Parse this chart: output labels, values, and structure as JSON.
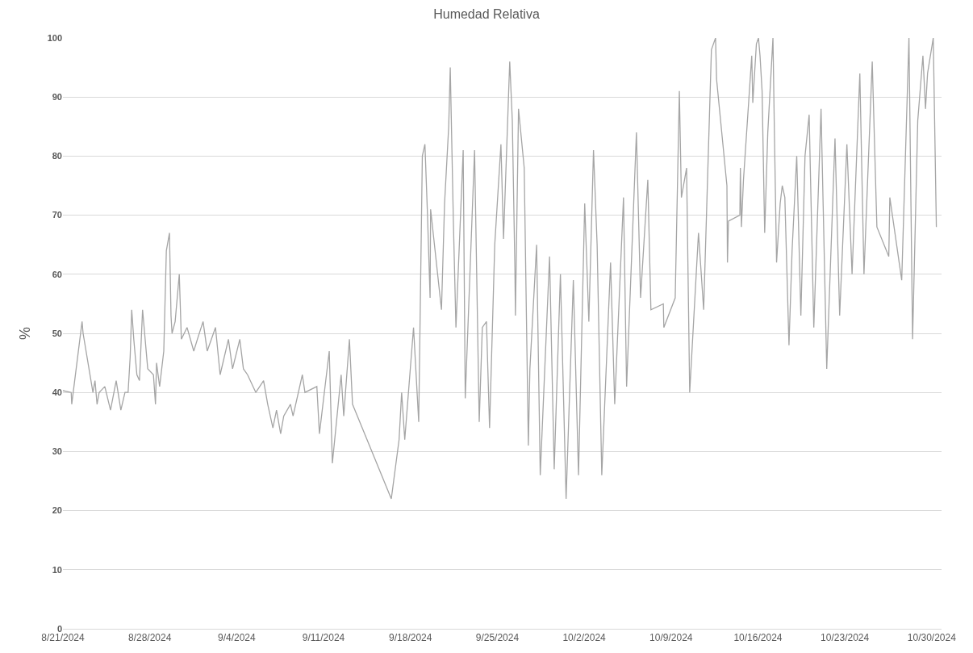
{
  "chart_data": {
    "type": "line",
    "title": "Humedad Relativa",
    "ylabel": "%",
    "x": [
      "2024-08-21T00:00",
      "2024-08-21T16:00",
      "2024-08-21T17:00",
      "2024-08-22T13:00",
      "2024-08-22T15:00",
      "2024-08-23T10:00",
      "2024-08-23T14:00",
      "2024-08-23T18:00",
      "2024-08-23T22:00",
      "2024-08-24T09:00",
      "2024-08-24T20:00",
      "2024-08-25T07:00",
      "2024-08-25T16:00",
      "2024-08-26T00:00",
      "2024-08-26T06:00",
      "2024-08-26T10:00",
      "2024-08-26T13:00",
      "2024-08-26T17:00",
      "2024-08-26T23:00",
      "2024-08-27T04:00",
      "2024-08-27T10:00",
      "2024-08-27T15:00",
      "2024-08-27T20:00",
      "2024-08-28T07:00",
      "2024-08-28T11:00",
      "2024-08-28T13:00",
      "2024-08-28T19:00",
      "2024-08-29T03:00",
      "2024-08-29T08:00",
      "2024-08-29T14:00",
      "2024-08-29T17:00",
      "2024-08-29T19:00",
      "2024-08-30T01:00",
      "2024-08-30T09:00",
      "2024-08-30T13:00",
      "2024-08-31T00:00",
      "2024-08-31T13:00",
      "2024-08-31T20:00",
      "2024-09-01T07:00",
      "2024-09-01T15:00",
      "2024-09-02T07:00",
      "2024-09-02T16:00",
      "2024-09-03T08:00",
      "2024-09-03T16:00",
      "2024-09-04T06:00",
      "2024-09-04T13:00",
      "2024-09-04T21:00",
      "2024-09-05T13:00",
      "2024-09-06T04:00",
      "2024-09-06T12:00",
      "2024-09-06T22:00",
      "2024-09-07T05:00",
      "2024-09-07T13:00",
      "2024-09-07T19:00",
      "2024-09-08T08:00",
      "2024-09-08T13:00",
      "2024-09-09T07:00",
      "2024-09-09T12:00",
      "2024-09-10T11:00",
      "2024-09-10T16:00",
      "2024-09-11T11:00",
      "2024-09-11T17:00",
      "2024-09-12T10:00",
      "2024-09-12T15:00",
      "2024-09-13T02:00",
      "2024-09-13T08:00",
      "2024-09-16T11:00",
      "2024-09-16T14:00",
      "2024-09-17T02:00",
      "2024-09-17T07:00",
      "2024-09-17T13:00",
      "2024-09-18T06:00",
      "2024-09-18T16:00",
      "2024-09-18T23:00",
      "2024-09-19T04:00",
      "2024-09-19T09:00",
      "2024-09-19T14:00",
      "2024-09-19T15:00",
      "2024-09-20T12:00",
      "2024-09-20T18:00",
      "2024-09-21T02:00",
      "2024-09-21T05:00",
      "2024-09-21T11:00",
      "2024-09-21T16:00",
      "2024-09-22T06:00",
      "2024-09-22T10:00",
      "2024-09-23T04:00",
      "2024-09-23T13:00",
      "2024-09-23T19:00",
      "2024-09-24T03:00",
      "2024-09-24T09:00",
      "2024-09-24T19:00",
      "2024-09-25T07:00",
      "2024-09-25T12:00",
      "2024-09-26T00:00",
      "2024-09-26T05:00",
      "2024-09-26T10:00",
      "2024-09-26T11:00",
      "2024-09-26T17:00",
      "2024-09-27T04:00",
      "2024-09-27T12:00",
      "2024-09-27T15:00",
      "2024-09-28T04:00",
      "2024-09-28T11:00",
      "2024-09-29T05:00",
      "2024-09-29T14:00",
      "2024-09-30T02:00",
      "2024-09-30T13:00",
      "2024-10-01T03:00",
      "2024-10-01T13:00",
      "2024-10-02T01:00",
      "2024-10-02T09:00",
      "2024-10-02T18:00",
      "2024-10-03T01:00",
      "2024-10-03T10:00",
      "2024-10-04T03:00",
      "2024-10-04T11:00",
      "2024-10-05T04:00",
      "2024-10-05T10:00",
      "2024-10-06T05:00",
      "2024-10-06T13:00",
      "2024-10-07T03:00",
      "2024-10-07T09:00",
      "2024-10-08T09:00",
      "2024-10-08T10:00",
      "2024-10-09T08:00",
      "2024-10-09T16:00",
      "2024-10-09T20:00",
      "2024-10-10T06:00",
      "2024-10-10T12:00",
      "2024-10-11T05:00",
      "2024-10-11T15:00",
      "2024-10-12T06:00",
      "2024-10-12T14:00",
      "2024-10-12T16:00",
      "2024-10-13T12:00",
      "2024-10-13T13:00",
      "2024-10-13T15:00",
      "2024-10-14T13:00",
      "2024-10-14T14:00",
      "2024-10-14T16:00",
      "2024-10-14T20:00",
      "2024-10-15T12:00",
      "2024-10-15T14:00",
      "2024-10-15T21:00",
      "2024-10-16T01:00",
      "2024-10-16T04:00",
      "2024-10-16T08:00",
      "2024-10-16T13:00",
      "2024-10-16T19:00",
      "2024-10-17T05:00",
      "2024-10-17T08:00",
      "2024-10-17T12:00",
      "2024-10-17T19:00",
      "2024-10-17T23:00",
      "2024-10-18T04:00",
      "2024-10-18T12:00",
      "2024-10-18T18:00",
      "2024-10-19T03:00",
      "2024-10-19T11:00",
      "2024-10-19T19:00",
      "2024-10-20T03:00",
      "2024-10-20T12:00",
      "2024-10-21T02:00",
      "2024-10-21T13:00",
      "2024-10-22T05:00",
      "2024-10-22T14:00",
      "2024-10-23T04:00",
      "2024-10-23T14:00",
      "2024-10-24T05:00",
      "2024-10-24T13:00",
      "2024-10-25T05:00",
      "2024-10-25T14:00",
      "2024-10-26T13:00",
      "2024-10-26T15:00",
      "2024-10-27T14:00",
      "2024-10-28T04:00",
      "2024-10-28T11:00",
      "2024-10-28T21:00",
      "2024-10-29T07:00",
      "2024-10-29T12:00",
      "2024-10-29T16:00",
      "2024-10-30T03:00",
      "2024-10-30T09:00"
    ],
    "series": [
      {
        "color": "#a5a5a5",
        "values": [
          40.3,
          40,
          38,
          52,
          50,
          40,
          42,
          38,
          40,
          41,
          37,
          42,
          37,
          40,
          40,
          46,
          54,
          49,
          43,
          42,
          54,
          49,
          44,
          43,
          38,
          45,
          41,
          47,
          64,
          67,
          53,
          50,
          52,
          60,
          49,
          51,
          47,
          49,
          52,
          47,
          51,
          43,
          49,
          44,
          49,
          44,
          43,
          40,
          42,
          38,
          34,
          37,
          33,
          36,
          38,
          36,
          43,
          40,
          41,
          33,
          47,
          28,
          43,
          36,
          49,
          38,
          22,
          24,
          32,
          40,
          32,
          51,
          35,
          80,
          82,
          70,
          56,
          71,
          54,
          72,
          85,
          95,
          69,
          51,
          81,
          39,
          81,
          35,
          51,
          52,
          34,
          65,
          82,
          66,
          96,
          86,
          61,
          53,
          88,
          78,
          31,
          44,
          65,
          26,
          63,
          27,
          60,
          22,
          59,
          26,
          72,
          52,
          81,
          65,
          26,
          62,
          38,
          73,
          41,
          84,
          56,
          76,
          54,
          55,
          51,
          56,
          91,
          73,
          78,
          40,
          67,
          54,
          98,
          100,
          93,
          75,
          62,
          69,
          70,
          78,
          68,
          76,
          97,
          89,
          99,
          100,
          97,
          91,
          67,
          84,
          100,
          83,
          62,
          72,
          75,
          73,
          48,
          64,
          80,
          53,
          80,
          87,
          51,
          88,
          44,
          83,
          53,
          82,
          60,
          94,
          60,
          96,
          68,
          63,
          73,
          59,
          100,
          49,
          86,
          97,
          88,
          94,
          100,
          68
        ]
      }
    ],
    "xlim": [
      "2024-08-21T00:00",
      "2024-10-30T19:00"
    ],
    "xticks": [
      {
        "value": "2024-08-21",
        "label": "8/21/2024"
      },
      {
        "value": "2024-08-28",
        "label": "8/28/2024"
      },
      {
        "value": "2024-09-04",
        "label": "9/4/2024"
      },
      {
        "value": "2024-09-11",
        "label": "9/11/2024"
      },
      {
        "value": "2024-09-18",
        "label": "9/18/2024"
      },
      {
        "value": "2024-09-25",
        "label": "9/25/2024"
      },
      {
        "value": "2024-10-02",
        "label": "10/2/2024"
      },
      {
        "value": "2024-10-09",
        "label": "10/9/2024"
      },
      {
        "value": "2024-10-16",
        "label": "10/16/2024"
      },
      {
        "value": "2024-10-23",
        "label": "10/23/2024"
      },
      {
        "value": "2024-10-30",
        "label": "10/30/2024"
      }
    ],
    "ylim": [
      0,
      100
    ],
    "yticks": [
      0,
      10,
      20,
      30,
      40,
      50,
      60,
      70,
      80,
      90,
      100
    ],
    "grid": "y",
    "marker": "none",
    "line_style": "solid"
  }
}
